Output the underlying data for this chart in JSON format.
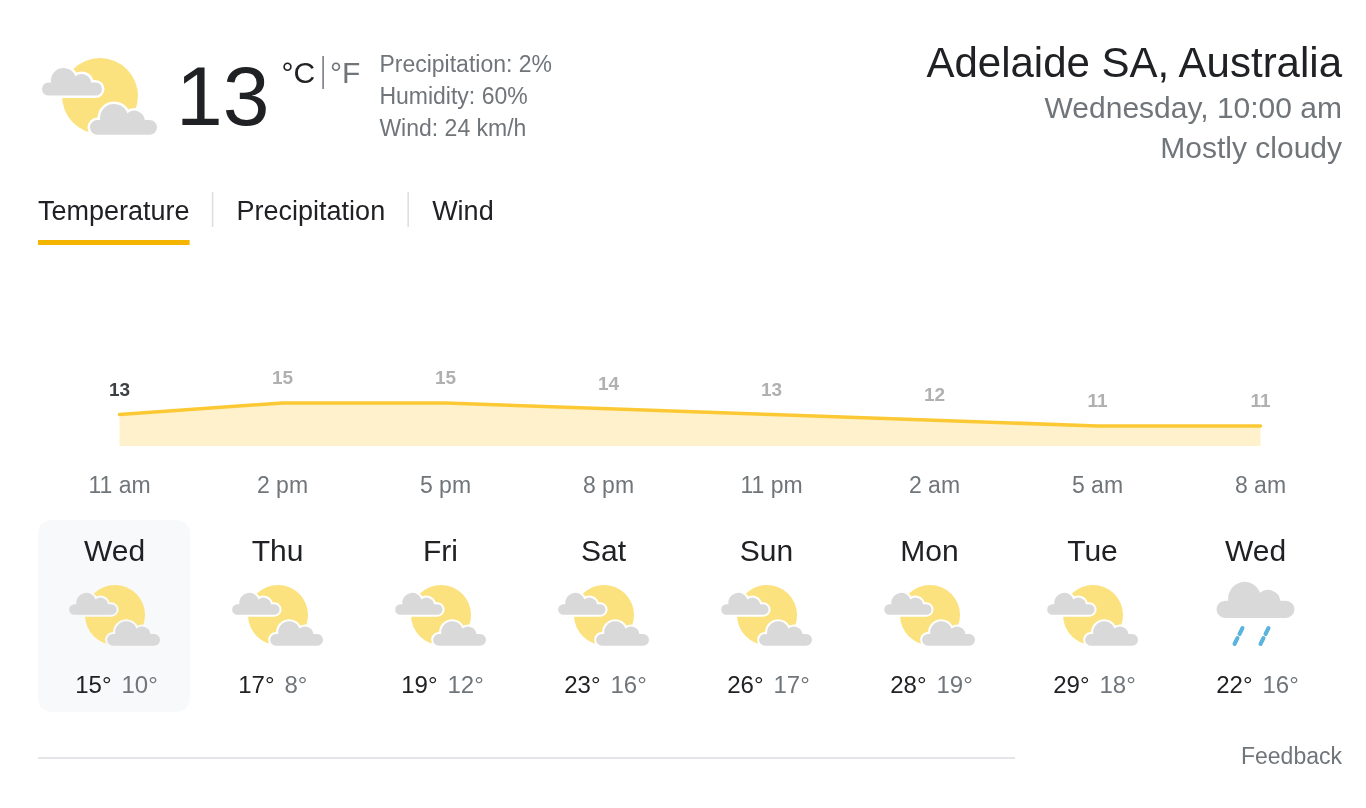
{
  "chart_data": [
    {
      "type": "other",
      "title": "Adelaide SA, Australia",
      "subtitle": "Wednesday, 10:00 am",
      "annotations": [
        "Mostly cloudy",
        "13",
        "°C",
        "°F",
        "Precipitation: 2%",
        "Humidity: 60%",
        "Wind: 24 km/h"
      ]
    },
    {
      "type": "area",
      "categories": [
        "11 am",
        "2 pm",
        "5 pm",
        "8 pm",
        "11 pm",
        "2 am",
        "5 am",
        "8 am"
      ],
      "values": [
        13,
        15,
        15,
        14,
        13,
        12,
        11,
        11
      ],
      "color": "#fcc934",
      "data_labels": true,
      "annotations": [
        "Temperature",
        "Precipitation",
        "Wind"
      ]
    },
    {
      "type": "other",
      "categories": [
        "Wed",
        "Thu",
        "Fri",
        "Sat",
        "Sun",
        "Mon",
        "Tue",
        "Wed"
      ],
      "series": [
        {
          "values": [
            15,
            17,
            19,
            23,
            26,
            28,
            29,
            22
          ],
          "value_labels": [
            "15°",
            "17°",
            "19°",
            "23°",
            "26°",
            "28°",
            "29°",
            "22°"
          ]
        },
        {
          "values": [
            10,
            8,
            12,
            16,
            17,
            19,
            18,
            16
          ],
          "value_labels": [
            "10°",
            "8°",
            "12°",
            "16°",
            "17°",
            "19°",
            "18°",
            "16°"
          ]
        }
      ],
      "annotations": [
        "Feedback"
      ]
    }
  ]
}
